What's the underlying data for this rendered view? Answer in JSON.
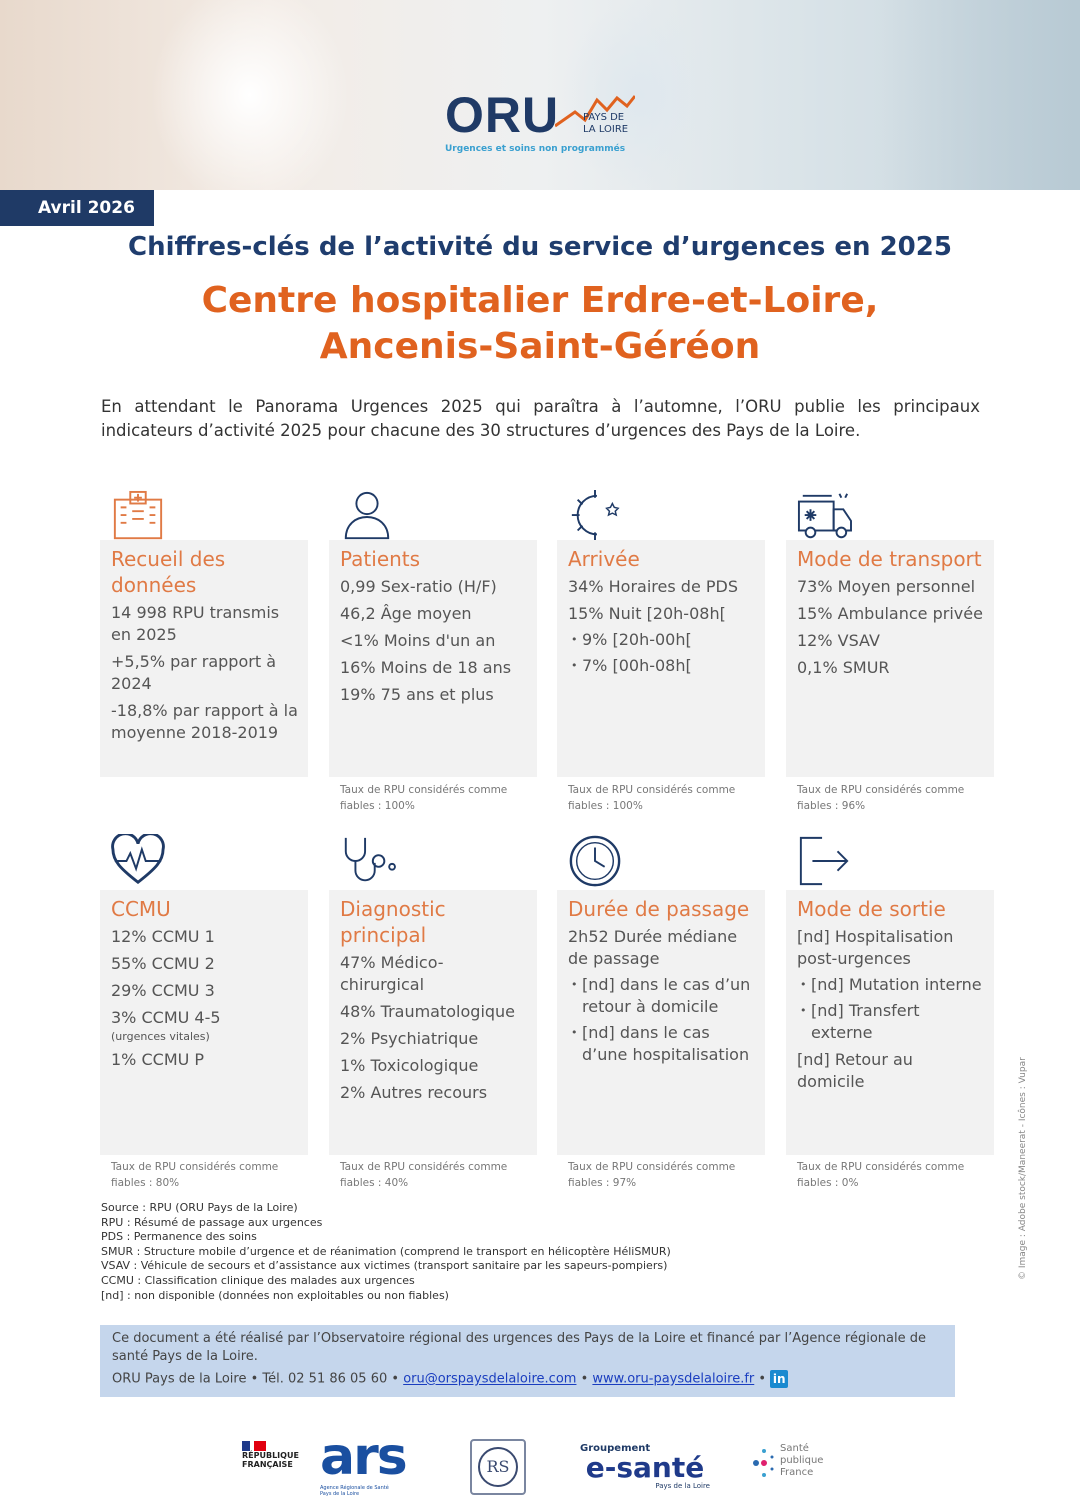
{
  "header": {
    "logo_text": "ORU",
    "logo_sub": "PAYS DE LA LOIRE",
    "logo_tag": "Urgences et soins non programmés",
    "date_badge": "Avril 2026"
  },
  "title": "Chiffres-clés de l’activité du service d’urgences en 2025",
  "subtitle_line1": "Centre hospitalier Erdre-et-Loire,",
  "subtitle_line2": "Ancenis-Saint-Géréon",
  "intro": "En attendant le Panorama Urgences 2025 qui paraîtra à l’automne, l’ORU publie les principaux indicateurs d’activité 2025 pour chacune des 30 structures d’urgences des Pays de la Loire.",
  "colors": {
    "navy": "#1f3d6e",
    "orange": "#e0621f",
    "card_title": "#e07a45",
    "card_bg": "#f2f2f2",
    "band": "#c5d6ec"
  },
  "cards": [
    {
      "icon": "hospital-icon",
      "title": "Recueil des données",
      "items": [
        {
          "t": "14 998 RPU transmis en 2025"
        },
        {
          "t": "+5,5% par rapport à 2024"
        },
        {
          "t": "-18,8% par rapport à la moyenne 2018-2019"
        }
      ],
      "note": ""
    },
    {
      "icon": "person-icon",
      "title": "Patients",
      "items": [
        {
          "t": "0,99 Sex-ratio (H/F)"
        },
        {
          "t": "46,2 Âge moyen"
        },
        {
          "t": "<1% Moins d'un an"
        },
        {
          "t": "16% Moins de 18 ans"
        },
        {
          "t": "19% 75 ans et plus"
        }
      ],
      "note": "Taux de RPU considérés comme fiables : 100%"
    },
    {
      "icon": "sun-moon-icon",
      "title": "Arrivée",
      "items": [
        {
          "t": "34% Horaires de PDS"
        },
        {
          "t": "15% Nuit [20h-08h["
        },
        {
          "t": "9% [20h-00h[",
          "b": true
        },
        {
          "t": "7% [00h-08h[",
          "b": true
        }
      ],
      "note": "Taux de RPU considérés comme fiables : 100%"
    },
    {
      "icon": "ambulance-icon",
      "title": "Mode de transport",
      "items": [
        {
          "t": "73% Moyen personnel"
        },
        {
          "t": "15% Ambulance privée"
        },
        {
          "t": "12% VSAV"
        },
        {
          "t": "0,1% SMUR"
        }
      ],
      "note": "Taux de RPU considérés comme fiables : 96%"
    },
    {
      "icon": "heart-pulse-icon",
      "title": "CCMU",
      "items": [
        {
          "t": "12% CCMU 1"
        },
        {
          "t": "55% CCMU 2"
        },
        {
          "t": "29% CCMU 3"
        },
        {
          "t": "3% CCMU 4-5"
        },
        {
          "t": "(urgences vitales)",
          "s": true
        },
        {
          "t": "1% CCMU P"
        }
      ],
      "note": "Taux de RPU considérés comme fiables : 80%"
    },
    {
      "icon": "stethoscope-icon",
      "title": "Diagnostic principal",
      "items": [
        {
          "t": "47% Médico-chirurgical"
        },
        {
          "t": "48% Traumatologique"
        },
        {
          "t": "2% Psychiatrique"
        },
        {
          "t": "1% Toxicologique"
        },
        {
          "t": "2% Autres recours"
        }
      ],
      "note": "Taux de RPU considérés comme fiables : 40%"
    },
    {
      "icon": "clock-icon",
      "title": "Durée de passage",
      "items": [
        {
          "t": "2h52 Durée médiane de passage"
        },
        {
          "t": "[nd] dans le cas d’un retour à domicile",
          "b": true
        },
        {
          "t": "[nd] dans le cas d’une hospitalisation",
          "b": true
        }
      ],
      "note": "Taux de RPU considérés comme fiables : 97%"
    },
    {
      "icon": "exit-icon",
      "title": "Mode de sortie",
      "items": [
        {
          "t": "[nd] Hospitalisation post-urgences"
        },
        {
          "t": "[nd] Mutation interne",
          "b": true
        },
        {
          "t": "[nd] Transfert externe",
          "b": true
        },
        {
          "t": "[nd] Retour au domicile"
        }
      ],
      "note": "Taux de RPU considérés comme fiables : 0%"
    }
  ],
  "footnotes": [
    "Source : RPU (ORU Pays de la Loire)",
    "RPU : Résumé de passage aux urgences",
    "PDS : Permanence des soins",
    "SMUR : Structure mobile d’urgence et de réanimation (comprend le transport en hélicoptère HéliSMUR)",
    "VSAV : Véhicule de secours et d’assistance aux victimes (transport sanitaire par les sapeurs-pompiers)",
    "CCMU : Classification clinique des malades aux urgences",
    "[nd] : non disponible (données non exploitables ou non fiables)"
  ],
  "credit": "© Image : Adobe stock/Maneerat - Icônes : Vupar",
  "band": {
    "text": "Ce document a été réalisé par l’Observatoire régional des urgences des Pays de la Loire et financé par l’Agence régionale de santé Pays de la Loire.",
    "contact": "ORU Pays de la Loire • Tél. 02 51 86 05 60 •",
    "email": "oru@orspaysdelaloire.com",
    "website": "www.oru-paysdelaloire.fr",
    "linkedin": "in"
  },
  "partners": {
    "rf": "RÉPUBLIQUE FRANÇAISE",
    "ars": "ars",
    "ars_sub": "Agence Régionale de Santé Pays de la Loire",
    "ors": "RS",
    "esante_top": "Groupement",
    "esante": "e-santé",
    "esante_sub": "Pays de la Loire",
    "spf": "Santé publique France"
  }
}
